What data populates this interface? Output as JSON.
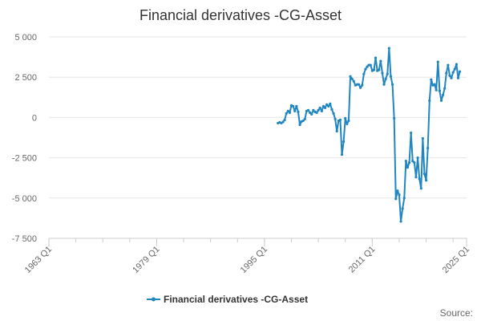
{
  "chart_data": {
    "type": "line",
    "title": "Financial derivatives -CG-Asset",
    "xlabel": "",
    "ylabel": "",
    "x_ticks": [
      "1963 Q1",
      "1979 Q1",
      "1995 Q1",
      "2011 Q1",
      "2025 Q1"
    ],
    "y_ticks": [
      "5 000",
      "2 500",
      "0",
      "-2 500",
      "-5 000",
      "-7 500"
    ],
    "ylim": [
      -7500,
      5000
    ],
    "xlim_years": [
      1963.0,
      2025.0
    ],
    "grid": "horizontal",
    "legend_position": "bottom",
    "series": [
      {
        "name": "Financial derivatives -CG-Asset",
        "color": "#1f86c2",
        "x_start": "1997 Q1",
        "frequency": "quarterly",
        "values": [
          -350,
          -300,
          -350,
          -280,
          -150,
          250,
          400,
          300,
          750,
          700,
          400,
          700,
          350,
          -450,
          -250,
          -200,
          -100,
          400,
          450,
          300,
          200,
          450,
          350,
          300,
          450,
          600,
          400,
          700,
          600,
          800,
          700,
          850,
          500,
          250,
          -100,
          -850,
          -200,
          -150,
          -2300,
          -1500,
          -50,
          -400,
          -200,
          2550,
          2400,
          2250,
          2000,
          2050,
          2050,
          1850,
          2000,
          2700,
          3000,
          3150,
          3250,
          3250,
          2900,
          2950,
          3700,
          2900,
          2950,
          3500,
          2750,
          2050,
          2400,
          2700,
          4300,
          2550,
          2050,
          -50,
          -5050,
          -4550,
          -4800,
          -6450,
          -5650,
          -5000,
          -2700,
          -3100,
          -2800,
          -950,
          -2700,
          -2800,
          -3700,
          -2500,
          -3800,
          -4400,
          -1300,
          -3500,
          -3900,
          -1900,
          1050,
          2350,
          2000,
          2050,
          1700,
          3450,
          1650,
          1050,
          1400,
          1800,
          2750,
          3250,
          2600,
          2450,
          2800,
          3000,
          3300,
          2450,
          2850
        ]
      }
    ]
  },
  "source_label": "Source:"
}
